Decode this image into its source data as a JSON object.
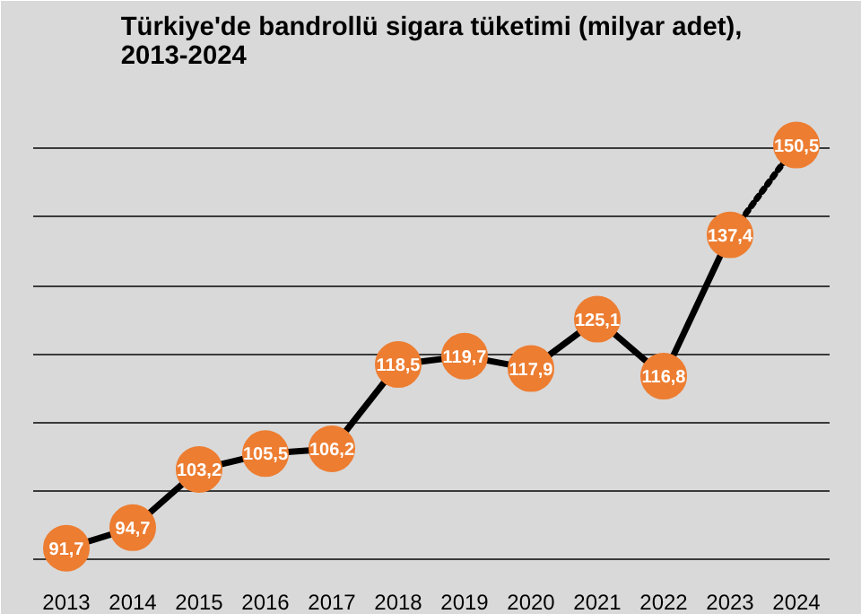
{
  "chart_data": {
    "type": "line",
    "title": "Türkiye'de bandrollü sigara tüketimi (milyar adet),\n2013-2024",
    "categories": [
      "2013",
      "2014",
      "2015",
      "2016",
      "2017",
      "2018",
      "2019",
      "2020",
      "2021",
      "2022",
      "2023",
      "2024"
    ],
    "series": [
      {
        "color": "#000000",
        "line_style": "solid",
        "marker": "none",
        "values": [
          91.7,
          94.7,
          103.2,
          105.5,
          106.2,
          118.5,
          119.7,
          117.9,
          125.1,
          116.8,
          137.4,
          null
        ]
      },
      {
        "color": "#000000",
        "line_style": "dotted",
        "marker": "none",
        "values": [
          null,
          null,
          null,
          null,
          null,
          null,
          null,
          null,
          null,
          null,
          137.4,
          150.5
        ]
      },
      {
        "type": "scatter",
        "color": "#ed7d31",
        "marker": "circle",
        "values": [
          91.7,
          94.7,
          103.2,
          105.5,
          106.2,
          118.5,
          119.7,
          117.9,
          125.1,
          116.8,
          137.4,
          150.5
        ],
        "value_labels": [
          "91,7",
          "94,7",
          "103,2",
          "105,5",
          "106,2",
          "118,5",
          "119,7",
          "117,9",
          "125,1",
          "116,8",
          "137,4",
          "150,5"
        ]
      }
    ],
    "ylim": [
      88,
      160
    ],
    "yticks": [
      {
        "value": 90,
        "label": null
      },
      {
        "value": 100,
        "label": null
      },
      {
        "value": 110,
        "label": null
      },
      {
        "value": 120,
        "label": null
      },
      {
        "value": 130,
        "label": null
      },
      {
        "value": 140,
        "label": null
      },
      {
        "value": 150,
        "label": null
      },
      {
        "value": 160,
        "label": null
      }
    ],
    "tick_labels": "x",
    "grid": "y"
  }
}
